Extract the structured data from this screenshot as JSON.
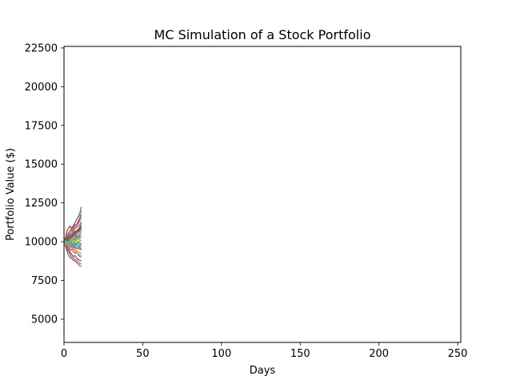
{
  "chart_data": {
    "type": "line",
    "title": "MC Simulation of a Stock Portfolio",
    "xlabel": "Days",
    "ylabel": "Portfolio Value ($)",
    "xlim": [
      0,
      252
    ],
    "ylim": [
      3500,
      22600
    ],
    "xticks": [
      0,
      50,
      100,
      150,
      200,
      250
    ],
    "yticks": [
      5000,
      7500,
      10000,
      12500,
      15000,
      17500,
      20000,
      22500
    ],
    "grid": false,
    "legend": "none",
    "series_colors": [
      "#1f77b4",
      "#ff7f0e",
      "#2ca02c",
      "#d62728",
      "#9467bd",
      "#8c564b",
      "#e377c2",
      "#7f7f7f",
      "#bcbd22",
      "#17becf"
    ],
    "series": [
      {
        "x": [
          0,
          1,
          2,
          3,
          4,
          5,
          6,
          7,
          8,
          9,
          10,
          11
        ],
        "values": [
          10000,
          10150,
          10280,
          10520,
          10700,
          10880,
          11050,
          11240,
          11420,
          11600,
          11820,
          12250
        ]
      },
      {
        "x": [
          0,
          1,
          2,
          3,
          4,
          5,
          6,
          7,
          8,
          9,
          10,
          11
        ],
        "values": [
          10000,
          10120,
          10060,
          10300,
          10480,
          10560,
          10790,
          10900,
          11120,
          11300,
          11600,
          12000
        ]
      },
      {
        "x": [
          0,
          1,
          2,
          3,
          4,
          5,
          6,
          7,
          8,
          9,
          10,
          11
        ],
        "values": [
          10000,
          10200,
          10350,
          10250,
          10500,
          10650,
          10600,
          10850,
          11000,
          11200,
          11450,
          11750
        ]
      },
      {
        "x": [
          0,
          1,
          2,
          3,
          4,
          5,
          6,
          7,
          8,
          9,
          10,
          11
        ],
        "values": [
          10000,
          10350,
          10700,
          10900,
          11000,
          10800,
          10950,
          11100,
          11050,
          11300,
          11400,
          11500
        ]
      },
      {
        "x": [
          0,
          1,
          2,
          3,
          4,
          5,
          6,
          7,
          8,
          9,
          10,
          11
        ],
        "values": [
          10000,
          9950,
          10100,
          10250,
          10150,
          10350,
          10500,
          10450,
          10650,
          10800,
          10950,
          11200
        ]
      },
      {
        "x": [
          0,
          1,
          2,
          3,
          4,
          5,
          6,
          7,
          8,
          9,
          10,
          11
        ],
        "values": [
          10000,
          10050,
          10000,
          10150,
          10300,
          10200,
          10400,
          10350,
          10500,
          10600,
          10700,
          10900
        ]
      },
      {
        "x": [
          0,
          1,
          2,
          3,
          4,
          5,
          6,
          7,
          8,
          9,
          10,
          11
        ],
        "values": [
          10000,
          9900,
          10050,
          9950,
          10150,
          10250,
          10100,
          10300,
          10400,
          10350,
          10500,
          10600
        ]
      },
      {
        "x": [
          0,
          1,
          2,
          3,
          4,
          5,
          6,
          7,
          8,
          9,
          10,
          11
        ],
        "values": [
          10000,
          10100,
          9950,
          10050,
          9900,
          10100,
          10200,
          10050,
          10250,
          10150,
          10300,
          10350
        ]
      },
      {
        "x": [
          0,
          1,
          2,
          3,
          4,
          5,
          6,
          7,
          8,
          9,
          10,
          11
        ],
        "values": [
          10000,
          9850,
          9950,
          10100,
          9950,
          10000,
          9900,
          10050,
          10100,
          9950,
          10050,
          10100
        ]
      },
      {
        "x": [
          0,
          1,
          2,
          3,
          4,
          5,
          6,
          7,
          8,
          9,
          10,
          11
        ],
        "values": [
          10000,
          10050,
          9900,
          9800,
          9950,
          9850,
          9750,
          9900,
          9800,
          9700,
          9850,
          9800
        ]
      },
      {
        "x": [
          0,
          1,
          2,
          3,
          4,
          5,
          6,
          7,
          8,
          9,
          10,
          11
        ],
        "values": [
          10000,
          9900,
          9800,
          9900,
          9700,
          9750,
          9600,
          9650,
          9550,
          9600,
          9500,
          9550
        ]
      },
      {
        "x": [
          0,
          1,
          2,
          3,
          4,
          5,
          6,
          7,
          8,
          9,
          10,
          11
        ],
        "values": [
          10000,
          9950,
          9850,
          9700,
          9750,
          9600,
          9500,
          9550,
          9400,
          9350,
          9300,
          9250
        ]
      },
      {
        "x": [
          0,
          1,
          2,
          3,
          4,
          5,
          6,
          7,
          8,
          9,
          10,
          11
        ],
        "values": [
          10000,
          9850,
          9700,
          9600,
          9450,
          9500,
          9350,
          9250,
          9300,
          9150,
          9050,
          9000
        ]
      },
      {
        "x": [
          0,
          1,
          2,
          3,
          4,
          5,
          6,
          7,
          8,
          9,
          10,
          11
        ],
        "values": [
          10000,
          9800,
          9600,
          9450,
          9300,
          9150,
          9050,
          9100,
          8950,
          8850,
          8800,
          8750
        ]
      },
      {
        "x": [
          0,
          1,
          2,
          3,
          4,
          5,
          6,
          7,
          8,
          9,
          10,
          11
        ],
        "values": [
          10000,
          9750,
          9500,
          9350,
          9150,
          9000,
          8950,
          8850,
          8800,
          8700,
          8600,
          8550
        ]
      },
      {
        "x": [
          0,
          1,
          2,
          3,
          4,
          5,
          6,
          7,
          8,
          9,
          10,
          11
        ],
        "values": [
          10000,
          9700,
          9350,
          9100,
          8950,
          8900,
          8800,
          8750,
          8650,
          8550,
          8450,
          8400
        ]
      },
      {
        "x": [
          0,
          1,
          2,
          3,
          4,
          5,
          6,
          7,
          8,
          9,
          10,
          11
        ],
        "values": [
          10000,
          10300,
          10500,
          10600,
          10450,
          10700,
          10900,
          10850,
          11050,
          11150,
          11300,
          11600
        ]
      },
      {
        "x": [
          0,
          1,
          2,
          3,
          4,
          5,
          6,
          7,
          8,
          9,
          10,
          11
        ],
        "values": [
          10000,
          10250,
          10400,
          10550,
          10750,
          10650,
          10850,
          10950,
          10900,
          11000,
          11100,
          11300
        ]
      },
      {
        "x": [
          0,
          1,
          2,
          3,
          4,
          5,
          6,
          7,
          8,
          9,
          10,
          11
        ],
        "values": [
          10000,
          9900,
          10000,
          10200,
          10100,
          9950,
          10150,
          10050,
          9900,
          10000,
          10100,
          10000
        ]
      },
      {
        "x": [
          0,
          1,
          2,
          3,
          4,
          5,
          6,
          7,
          8,
          9,
          10,
          11
        ],
        "values": [
          10000,
          10150,
          10050,
          9950,
          10100,
          10250,
          10350,
          10200,
          10300,
          10450,
          10550,
          10700
        ]
      },
      {
        "x": [
          0,
          1,
          2,
          3,
          4,
          5,
          6,
          7,
          8,
          9,
          10,
          11
        ],
        "values": [
          10000,
          9950,
          10050,
          10150,
          10000,
          9850,
          9950,
          9800,
          9850,
          9950,
          9900,
          9850
        ]
      },
      {
        "x": [
          0,
          1,
          2,
          3,
          4,
          5,
          6,
          7,
          8,
          9,
          10,
          11
        ],
        "values": [
          10000,
          9800,
          9900,
          9700,
          9600,
          9700,
          9800,
          9650,
          9550,
          9650,
          9700,
          9650
        ]
      },
      {
        "x": [
          0,
          1,
          2,
          3,
          4,
          5,
          6,
          7,
          8,
          9,
          10,
          11
        ],
        "values": [
          10000,
          10050,
          10200,
          10350,
          10300,
          10450,
          10400,
          10600,
          10750,
          10700,
          10900,
          11050
        ]
      },
      {
        "x": [
          0,
          1,
          2,
          3,
          4,
          5,
          6,
          7,
          8,
          9,
          10,
          11
        ],
        "values": [
          10000,
          10100,
          10250,
          10150,
          10350,
          10300,
          10500,
          10650,
          10600,
          10800,
          10850,
          11000
        ]
      },
      {
        "x": [
          0,
          1,
          2,
          3,
          4,
          5,
          6,
          7,
          8,
          9,
          10,
          11
        ],
        "values": [
          10000,
          9900,
          9750,
          9850,
          9700,
          9800,
          9650,
          9750,
          9600,
          9550,
          9650,
          9450
        ]
      },
      {
        "x": [
          0,
          1,
          2,
          3,
          4,
          5,
          6,
          7,
          8,
          9,
          10,
          11
        ],
        "values": [
          10000,
          10200,
          10100,
          10300,
          10500,
          10400,
          10600,
          10550,
          10700,
          10650,
          10800,
          10750
        ]
      },
      {
        "x": [
          0,
          1,
          2,
          3,
          4,
          5,
          6,
          7,
          8,
          9,
          10,
          11
        ],
        "values": [
          10000,
          9950,
          9800,
          9650,
          9550,
          9450,
          9550,
          9400,
          9300,
          9200,
          9150,
          9100
        ]
      },
      {
        "x": [
          0,
          1,
          2,
          3,
          4,
          5,
          6,
          7,
          8,
          9,
          10,
          11
        ],
        "values": [
          10000,
          10050,
          9950,
          10100,
          10250,
          10150,
          10050,
          10200,
          10350,
          10250,
          10400,
          10450
        ]
      },
      {
        "x": [
          0,
          1,
          2,
          3,
          4,
          5,
          6,
          7,
          8,
          9,
          10,
          11
        ],
        "values": [
          10000,
          9850,
          10000,
          9900,
          10050,
          10150,
          10050,
          9950,
          10100,
          10200,
          10150,
          10250
        ]
      },
      {
        "x": [
          0,
          1,
          2,
          3,
          4,
          5,
          6,
          7,
          8,
          9,
          10,
          11
        ],
        "values": [
          10000,
          10100,
          10000,
          9850,
          9750,
          9850,
          9950,
          9850,
          9750,
          9800,
          9700,
          9750
        ]
      }
    ]
  }
}
